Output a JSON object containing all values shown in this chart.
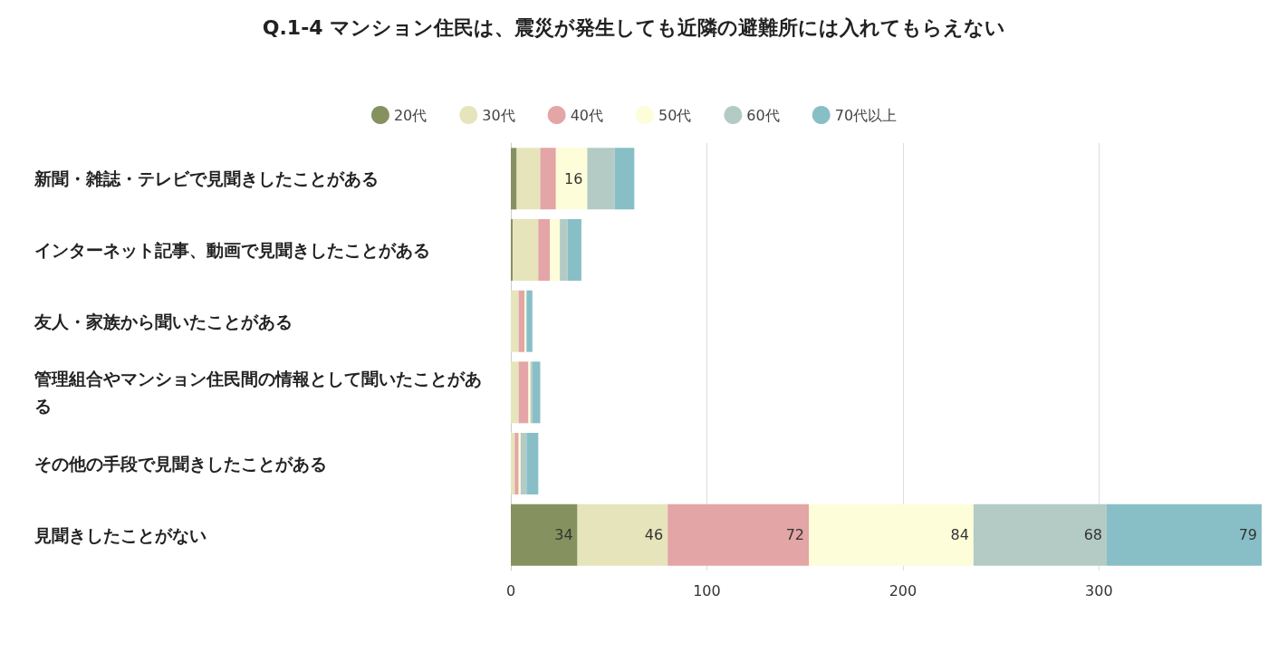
{
  "chart_data": {
    "type": "bar",
    "orientation": "horizontal",
    "stacked": true,
    "title": "Q.1-4 マンション住民は、震災が発生しても近隣の避難所には入れてもらえない",
    "categories": [
      "新聞・雑誌・テレビで見聞きしたことがある",
      "インターネット記事、動画で見聞きしたことがある",
      "友人・家族から聞いたことがある",
      "管理組合やマンション住民間の情報として聞いたことがある",
      "その他の手段で見聞きしたことがある",
      "見聞きしたことがない"
    ],
    "series": [
      {
        "name": "20代",
        "color": "#85925f",
        "values": [
          3,
          1,
          0,
          0,
          0,
          34
        ],
        "value_labels": [
          null,
          null,
          null,
          null,
          null,
          "34"
        ]
      },
      {
        "name": "30代",
        "color": "#e6e4bb",
        "values": [
          12,
          13,
          4,
          4,
          2,
          46
        ],
        "value_labels": [
          null,
          null,
          null,
          null,
          null,
          "46"
        ]
      },
      {
        "name": "40代",
        "color": "#e4a5a6",
        "values": [
          8,
          6,
          3,
          5,
          2,
          72
        ],
        "value_labels": [
          null,
          null,
          null,
          null,
          null,
          "72"
        ]
      },
      {
        "name": "50代",
        "color": "#fdfdd9",
        "values": [
          16,
          5,
          1,
          1,
          1,
          84
        ],
        "value_labels": [
          "16",
          null,
          null,
          null,
          null,
          "84"
        ]
      },
      {
        "name": "60代",
        "color": "#b4cbc5",
        "values": [
          14,
          4,
          0,
          1,
          3,
          68
        ],
        "value_labels": [
          null,
          null,
          null,
          null,
          null,
          "68"
        ]
      },
      {
        "name": "70代以上",
        "color": "#88bfc7",
        "values": [
          10,
          7,
          3,
          4,
          6,
          79
        ],
        "value_labels": [
          null,
          null,
          null,
          null,
          null,
          "79"
        ]
      }
    ],
    "xlim": [
      0,
      383
    ],
    "xticks": [
      0,
      100,
      200,
      300
    ],
    "grid": "x",
    "legend": "top"
  }
}
